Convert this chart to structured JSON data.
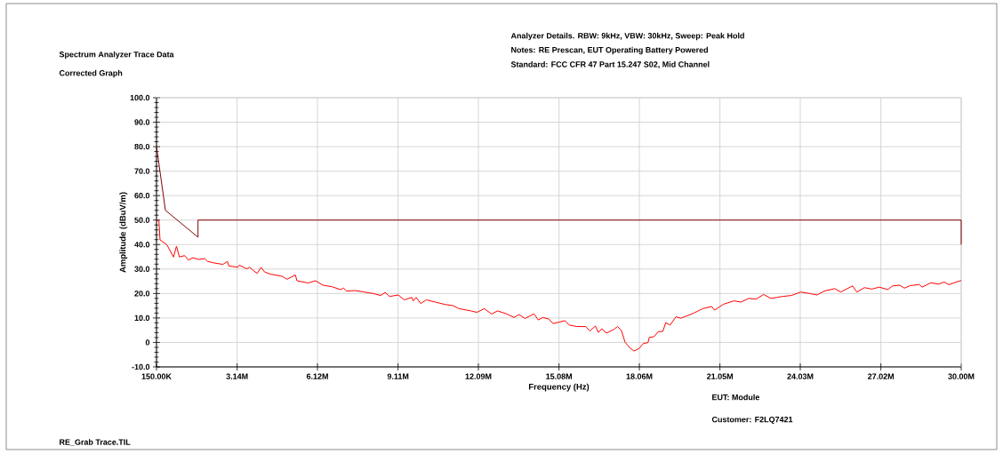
{
  "chart_data": {
    "type": "line",
    "title": "Spectrum Analyzer Trace Data",
    "subtitle": "Corrected Graph",
    "xlabel": "Frequency (Hz)",
    "ylabel": "Amplitude (dBuV/m)",
    "annotations": [
      "Analyzer Details.  RBW: 9kHz, VBW: 30kHz, Sweep: Peak Hold",
      "Notes:  RE Prescan, EUT Operating Battery Powered",
      "Standard:  FCC CFR 47 Part 15.247 S02, Mid Channel",
      "EUT:  Module",
      "Customer:  F2LQ7421",
      "RE_Grab Trace.TIL"
    ],
    "xlim": [
      150000,
      30000000
    ],
    "xticks": [
      {
        "value": 150000,
        "label": "150.00K"
      },
      {
        "value": 3140000,
        "label": "3.14M"
      },
      {
        "value": 6120000,
        "label": "6.12M"
      },
      {
        "value": 9110000,
        "label": "9.11M"
      },
      {
        "value": 12090000,
        "label": "12.09M"
      },
      {
        "value": 15080000,
        "label": "15.08M"
      },
      {
        "value": 18060000,
        "label": "18.06M"
      },
      {
        "value": 21050000,
        "label": "21.05M"
      },
      {
        "value": 24030000,
        "label": "24.03M"
      },
      {
        "value": 27020000,
        "label": "27.02M"
      },
      {
        "value": 30000000,
        "label": "30.00M"
      }
    ],
    "ylim": [
      -10,
      100
    ],
    "yticks": [
      {
        "value": -10,
        "label": "-10.0"
      },
      0,
      {
        "value": 10,
        "label": "10.0"
      },
      {
        "value": 20,
        "label": "20.0"
      },
      {
        "value": 30,
        "label": "30.0"
      },
      {
        "value": 40,
        "label": "40.0"
      },
      {
        "value": 50,
        "label": "50.0"
      },
      {
        "value": 60,
        "label": "60.0"
      },
      {
        "value": 70,
        "label": "70.0"
      },
      {
        "value": 80,
        "label": "80.0"
      },
      {
        "value": 90,
        "label": "90.0"
      },
      {
        "value": 100,
        "label": "100.0"
      }
    ],
    "grid": true,
    "marker": "none",
    "line_style": "solid",
    "series": [
      {
        "color": "#800000",
        "x": [
          150000,
          480000,
          1690000,
          1690000,
          30000000,
          30000000
        ],
        "values": [
          80,
          54,
          43,
          50,
          50,
          40
        ]
      },
      {
        "color": "#ff0000",
        "x": [
          150000,
          240000,
          280000,
          530000,
          780000,
          890000,
          1000000,
          1190000,
          1330000,
          1500000,
          1720000,
          1940000,
          2050000,
          2280000,
          2610000,
          2780000,
          2830000,
          3160000,
          3220000,
          3490000,
          3600000,
          3880000,
          4030000,
          4160000,
          4380000,
          4820000,
          4990000,
          5300000,
          5360000,
          5770000,
          6050000,
          6320000,
          6650000,
          6980000,
          7090000,
          7200000,
          7530000,
          7850000,
          8190000,
          8460000,
          8630000,
          8800000,
          9120000,
          9340000,
          9620000,
          9670000,
          9780000,
          9950000,
          10160000,
          10490000,
          10820000,
          11160000,
          11370000,
          11810000,
          12030000,
          12310000,
          12580000,
          12800000,
          13130000,
          13410000,
          13600000,
          13820000,
          14150000,
          14310000,
          14480000,
          14700000,
          14860000,
          15080000,
          15300000,
          15460000,
          15740000,
          16070000,
          16230000,
          16430000,
          16540000,
          16670000,
          16840000,
          17110000,
          17250000,
          17390000,
          17530000,
          17720000,
          17860000,
          18050000,
          18210000,
          18380000,
          18430000,
          18600000,
          18760000,
          18930000,
          19040000,
          19200000,
          19420000,
          19590000,
          19860000,
          20080000,
          20410000,
          20740000,
          20850000,
          21180000,
          21570000,
          21840000,
          22120000,
          22390000,
          22670000,
          22940000,
          23160000,
          23380000,
          23710000,
          24040000,
          24370000,
          24650000,
          24920000,
          25310000,
          25530000,
          25970000,
          26130000,
          26410000,
          26680000,
          26960000,
          27280000,
          27450000,
          27720000,
          27890000,
          28110000,
          28440000,
          28550000,
          28880000,
          29150000,
          29370000,
          29540000,
          29870000,
          30000000
        ],
        "values": [
          50.0,
          49.6,
          41.9,
          40.0,
          34.9,
          39.3,
          34.9,
          35.5,
          33.7,
          34.6,
          33.9,
          34.3,
          33.1,
          32.5,
          31.9,
          33.1,
          31.3,
          30.7,
          31.6,
          30.1,
          30.7,
          28.2,
          30.7,
          28.8,
          27.9,
          27.0,
          25.8,
          27.6,
          25.2,
          24.3,
          25.2,
          23.4,
          22.8,
          21.6,
          22.2,
          21.0,
          21.2,
          20.6,
          20.0,
          19.2,
          20.4,
          18.8,
          19.4,
          17.4,
          18.4,
          17.0,
          18.4,
          15.9,
          17.4,
          16.5,
          15.6,
          15.0,
          13.8,
          12.9,
          12.3,
          13.8,
          11.6,
          12.9,
          11.7,
          10.2,
          11.4,
          9.8,
          11.7,
          9.2,
          10.2,
          9.6,
          7.7,
          8.3,
          8.9,
          7.1,
          6.5,
          6.5,
          4.7,
          6.7,
          4.1,
          5.6,
          3.8,
          5.3,
          6.5,
          5.0,
          0.1,
          -2.3,
          -3.5,
          -2.5,
          -0.4,
          -0.1,
          2.1,
          2.3,
          4.4,
          4.5,
          8.1,
          7.1,
          10.5,
          9.9,
          11.0,
          12.0,
          13.8,
          14.7,
          13.2,
          15.6,
          17.0,
          16.5,
          18.0,
          17.7,
          19.6,
          18.0,
          18.4,
          18.8,
          19.2,
          20.6,
          20.0,
          19.4,
          21.0,
          22.0,
          20.6,
          23.1,
          20.6,
          22.4,
          21.8,
          22.6,
          21.6,
          23.1,
          23.4,
          22.2,
          23.2,
          23.7,
          22.6,
          24.4,
          23.8,
          24.7,
          23.6,
          24.9,
          25.3
        ]
      }
    ]
  }
}
